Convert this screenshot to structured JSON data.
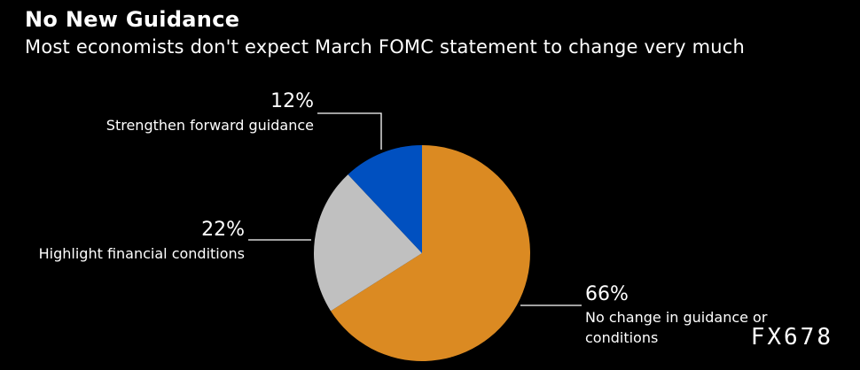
{
  "header": {
    "title": "No New Guidance",
    "subtitle": "Most economists don't expect March FOMC statement to change very much"
  },
  "watermark": "FX678",
  "chart_data": {
    "type": "pie",
    "title": "No New Guidance",
    "subtitle": "Most economists don't expect March FOMC statement to change very much",
    "slices": [
      {
        "label": "No change in guidance or conditions",
        "label_lines": [
          "No change in guidance or",
          "conditions"
        ],
        "value": 66,
        "value_label": "66%",
        "color": "#DB8A22"
      },
      {
        "label": "Highlight financial conditions",
        "label_lines": [
          "Highlight financial conditions"
        ],
        "value": 22,
        "value_label": "22%",
        "color": "#C0C0C0"
      },
      {
        "label": "Strengthen forward guidance",
        "label_lines": [
          "Strengthen forward guidance"
        ],
        "value": 12,
        "value_label": "12%",
        "color": "#0050C0"
      }
    ],
    "start": "12 o'clock",
    "direction": "clockwise",
    "legend": "none",
    "background": "#000000",
    "text_color": "#FFFFFF",
    "leader_line_color": "#FFFFFF"
  }
}
